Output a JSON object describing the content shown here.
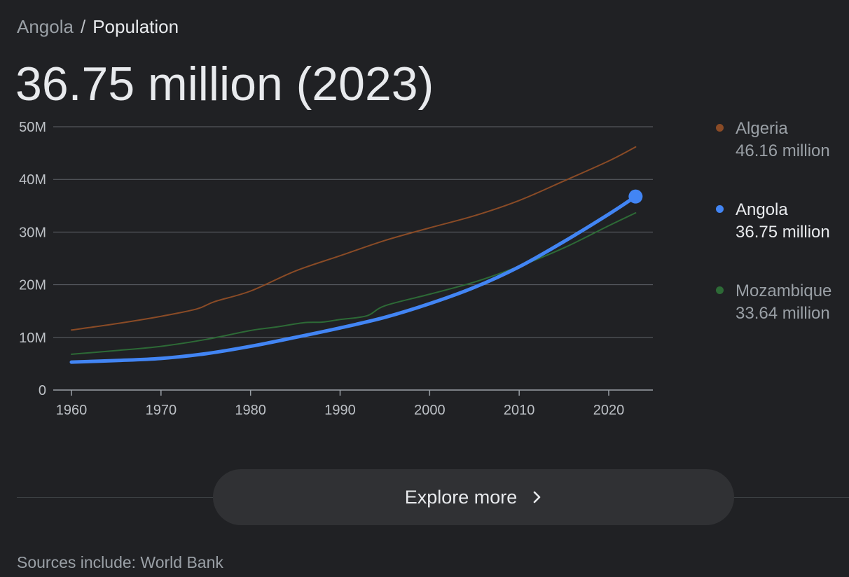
{
  "breadcrumb": {
    "root": "Angola",
    "separator": "/",
    "current": "Population"
  },
  "headline": "36.75 million (2023)",
  "legend": [
    {
      "name": "Algeria",
      "value": "46.16 million",
      "color": "#8a4b26",
      "active": false
    },
    {
      "name": "Angola",
      "value": "36.75 million",
      "color": "#4285f4",
      "active": true
    },
    {
      "name": "Mozambique",
      "value": "33.64 million",
      "color": "#2d6a36",
      "active": false
    }
  ],
  "explore": {
    "label": "Explore more",
    "icon": "chevron-right-icon"
  },
  "sources": "Sources include: World Bank",
  "colors": {
    "background": "#202124",
    "grid": "#5f6368",
    "angola": "#4285f4",
    "algeria": "#8a4b26",
    "mozambique": "#2d6a36"
  },
  "chart_data": {
    "type": "line",
    "title": "",
    "xlabel": "",
    "ylabel": "",
    "xlim": [
      1960,
      2023
    ],
    "ylim": [
      0,
      50
    ],
    "y_ticks": [
      0,
      10,
      20,
      30,
      40,
      50
    ],
    "y_tick_labels": [
      "0",
      "10M",
      "20M",
      "30M",
      "40M",
      "50M"
    ],
    "x_ticks": [
      1960,
      1970,
      1980,
      1990,
      2000,
      2010,
      2020
    ],
    "x_tick_labels": [
      "1960",
      "1970",
      "1980",
      "1990",
      "2000",
      "2010",
      "2020"
    ],
    "grid": true,
    "legend_position": "right",
    "series": [
      {
        "name": "Algeria",
        "color": "#8a4b26",
        "x": [
          1960,
          1965,
          1970,
          1974,
          1976,
          1980,
          1985,
          1990,
          1995,
          2000,
          2005,
          2010,
          2015,
          2020,
          2023
        ],
        "y": [
          11.4,
          12.6,
          14.0,
          15.4,
          16.8,
          18.8,
          22.6,
          25.5,
          28.4,
          30.8,
          33.1,
          36.0,
          39.7,
          43.5,
          46.16
        ]
      },
      {
        "name": "Mozambique",
        "color": "#2d6a36",
        "x": [
          1960,
          1965,
          1970,
          1975,
          1980,
          1983,
          1986,
          1988,
          1990,
          1993,
          1995,
          2000,
          2005,
          2010,
          2015,
          2020,
          2023
        ],
        "y": [
          6.8,
          7.5,
          8.3,
          9.6,
          11.3,
          12.0,
          12.8,
          12.9,
          13.4,
          14.1,
          16.0,
          18.2,
          20.5,
          23.5,
          27.0,
          31.2,
          33.64
        ]
      },
      {
        "name": "Angola",
        "color": "#4285f4",
        "x": [
          1960,
          1965,
          1970,
          1975,
          1980,
          1985,
          1990,
          1995,
          2000,
          2005,
          2010,
          2015,
          2020,
          2023
        ],
        "y": [
          5.3,
          5.6,
          6.0,
          6.9,
          8.3,
          10.0,
          11.8,
          13.8,
          16.4,
          19.5,
          23.4,
          28.2,
          33.4,
          36.75
        ]
      }
    ],
    "highlight": {
      "series": "Angola",
      "x": 2023,
      "y": 36.75
    }
  }
}
